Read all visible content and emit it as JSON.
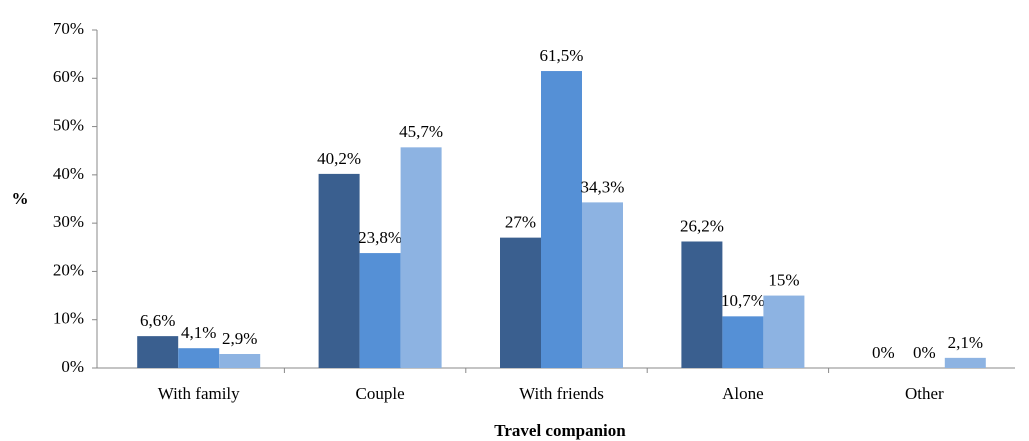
{
  "chart_data": {
    "type": "bar",
    "x_label": "Travel companion",
    "y_label": "%",
    "categories": [
      "With family",
      "Couple",
      "With friends",
      "Alone",
      "Other"
    ],
    "series": [
      {
        "color": "#3a5f8f",
        "values": [
          6.6,
          40.2,
          27,
          26.2,
          0
        ],
        "value_labels": [
          "6,6%",
          "40,2%",
          "27%",
          "26,2%",
          "0%"
        ]
      },
      {
        "color": "#5590d6",
        "values": [
          4.1,
          23.8,
          61.5,
          10.7,
          0
        ],
        "value_labels": [
          "4,1%",
          "23,8%",
          "61,5%",
          "10,7%",
          "0%"
        ]
      },
      {
        "color": "#8db3e2",
        "values": [
          2.9,
          45.7,
          34.3,
          15,
          2.1
        ],
        "value_labels": [
          "2,9%",
          "45,7%",
          "34,3%",
          "15%",
          "2,1%"
        ]
      }
    ],
    "ylim": [
      0,
      70
    ],
    "yticks": [
      {
        "value": 0,
        "label": "0%"
      },
      {
        "value": 10,
        "label": "10%"
      },
      {
        "value": 20,
        "label": "20%"
      },
      {
        "value": 30,
        "label": "30%"
      },
      {
        "value": 40,
        "label": "40%"
      },
      {
        "value": 50,
        "label": "50%"
      },
      {
        "value": 60,
        "label": "60%"
      },
      {
        "value": 70,
        "label": "70%"
      }
    ]
  }
}
